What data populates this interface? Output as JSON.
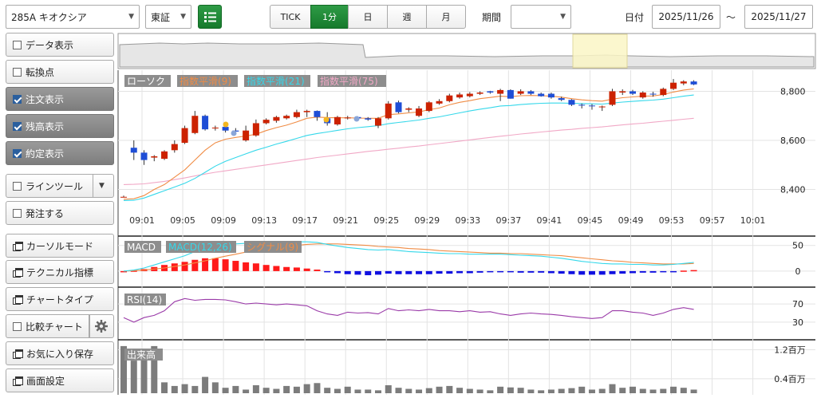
{
  "toolbar": {
    "symbol": "285A キオクシア",
    "market": "東証",
    "tabs": [
      "TICK",
      "1分",
      "日",
      "週",
      "月"
    ],
    "active_tab": "1分",
    "period_label": "期間",
    "period_value": "",
    "date_label": "日付",
    "date_from": "2025/11/26",
    "date_sep": "～",
    "date_to": "2025/11/27"
  },
  "sidebar": {
    "items": [
      {
        "label": "データ表示",
        "icon": "checkbox",
        "checked": false
      },
      {
        "label": "転換点",
        "icon": "checkbox",
        "checked": false
      },
      {
        "label": "注文表示",
        "icon": "checkbox",
        "checked": true
      },
      {
        "label": "残高表示",
        "icon": "checkbox",
        "checked": true
      },
      {
        "label": "約定表示",
        "icon": "checkbox",
        "checked": true
      },
      {
        "label": "ラインツール",
        "icon": "checkbox",
        "checked": false
      },
      {
        "label": "発注する",
        "icon": "checkbox",
        "checked": false
      },
      {
        "label": "カーソルモード",
        "icon": "window",
        "checked": false
      },
      {
        "label": "テクニカル指標",
        "icon": "window",
        "checked": false
      },
      {
        "label": "チャートタイプ",
        "icon": "window",
        "checked": false
      },
      {
        "label": "比較チャート",
        "icon": "checkbox",
        "checked": false
      },
      {
        "label": "お気に入り保存",
        "icon": "window",
        "checked": false
      },
      {
        "label": "画面設定",
        "icon": "window",
        "checked": false
      }
    ]
  },
  "chart_data": [
    {
      "type": "candlestick",
      "panel": "price",
      "legend": [
        "ローソク",
        "指数平滑(9)",
        "指数平滑(21)",
        "指数平滑(75)"
      ],
      "colors": {
        "up": "#cc2200",
        "down": "#1f4ed6",
        "ema9": "#f08c45",
        "ema21": "#35d8ea",
        "ema75": "#f1a8c6",
        "legend_bg": "#8d8d8d"
      },
      "x_tick_labels": [
        "09:01",
        "09:05",
        "09:09",
        "09:13",
        "09:17",
        "09:21",
        "09:25",
        "09:29",
        "09:33",
        "09:37",
        "09:41",
        "09:45",
        "09:49",
        "09:53",
        "09:57",
        "10:01"
      ],
      "y_ticks": [
        8400,
        8600,
        8800
      ],
      "ylim": [
        8340,
        8860
      ],
      "candles": [
        {
          "o": 8370,
          "h": 8375,
          "l": 8368,
          "c": 8370
        },
        {
          "o": 8570,
          "h": 8600,
          "l": 8520,
          "c": 8550
        },
        {
          "o": 8550,
          "h": 8560,
          "l": 8500,
          "c": 8520
        },
        {
          "o": 8530,
          "h": 8540,
          "l": 8515,
          "c": 8535
        },
        {
          "o": 8525,
          "h": 8560,
          "l": 8520,
          "c": 8555
        },
        {
          "o": 8560,
          "h": 8600,
          "l": 8550,
          "c": 8585
        },
        {
          "o": 8590,
          "h": 8660,
          "l": 8585,
          "c": 8650
        },
        {
          "o": 8630,
          "h": 8720,
          "l": 8625,
          "c": 8700
        },
        {
          "o": 8700,
          "h": 8705,
          "l": 8640,
          "c": 8645
        },
        {
          "o": 8650,
          "h": 8660,
          "l": 8640,
          "c": 8652
        },
        {
          "o": 8655,
          "h": 8658,
          "l": 8632,
          "c": 8640
        },
        {
          "o": 8640,
          "h": 8650,
          "l": 8628,
          "c": 8636
        },
        {
          "o": 8600,
          "h": 8660,
          "l": 8595,
          "c": 8640
        },
        {
          "o": 8620,
          "h": 8685,
          "l": 8615,
          "c": 8670
        },
        {
          "o": 8670,
          "h": 8690,
          "l": 8665,
          "c": 8684
        },
        {
          "o": 8680,
          "h": 8700,
          "l": 8672,
          "c": 8695
        },
        {
          "o": 8690,
          "h": 8705,
          "l": 8685,
          "c": 8700
        },
        {
          "o": 8695,
          "h": 8725,
          "l": 8690,
          "c": 8715
        },
        {
          "o": 8715,
          "h": 8725,
          "l": 8695,
          "c": 8720
        },
        {
          "o": 8720,
          "h": 8722,
          "l": 8680,
          "c": 8695
        },
        {
          "o": 8690,
          "h": 8715,
          "l": 8660,
          "c": 8670
        },
        {
          "o": 8665,
          "h": 8700,
          "l": 8660,
          "c": 8695
        },
        {
          "o": 8690,
          "h": 8700,
          "l": 8685,
          "c": 8693
        },
        {
          "o": 8695,
          "h": 8698,
          "l": 8685,
          "c": 8690
        },
        {
          "o": 8690,
          "h": 8695,
          "l": 8680,
          "c": 8685
        },
        {
          "o": 8660,
          "h": 8695,
          "l": 8650,
          "c": 8690
        },
        {
          "o": 8690,
          "h": 8760,
          "l": 8685,
          "c": 8750
        },
        {
          "o": 8755,
          "h": 8762,
          "l": 8710,
          "c": 8715
        },
        {
          "o": 8725,
          "h": 8735,
          "l": 8715,
          "c": 8730
        },
        {
          "o": 8700,
          "h": 8740,
          "l": 8695,
          "c": 8730
        },
        {
          "o": 8720,
          "h": 8760,
          "l": 8715,
          "c": 8755
        },
        {
          "o": 8750,
          "h": 8768,
          "l": 8745,
          "c": 8760
        },
        {
          "o": 8760,
          "h": 8790,
          "l": 8755,
          "c": 8783
        },
        {
          "o": 8775,
          "h": 8795,
          "l": 8770,
          "c": 8787
        },
        {
          "o": 8780,
          "h": 8797,
          "l": 8775,
          "c": 8790
        },
        {
          "o": 8790,
          "h": 8800,
          "l": 8785,
          "c": 8795
        },
        {
          "o": 8800,
          "h": 8802,
          "l": 8790,
          "c": 8795
        },
        {
          "o": 8790,
          "h": 8810,
          "l": 8760,
          "c": 8805
        },
        {
          "o": 8805,
          "h": 8808,
          "l": 8770,
          "c": 8770
        },
        {
          "o": 8790,
          "h": 8808,
          "l": 8785,
          "c": 8800
        },
        {
          "o": 8800,
          "h": 8805,
          "l": 8785,
          "c": 8790
        },
        {
          "o": 8790,
          "h": 8795,
          "l": 8778,
          "c": 8780
        },
        {
          "o": 8790,
          "h": 8795,
          "l": 8770,
          "c": 8775
        },
        {
          "o": 8772,
          "h": 8778,
          "l": 8760,
          "c": 8765
        },
        {
          "o": 8765,
          "h": 8768,
          "l": 8740,
          "c": 8745
        },
        {
          "o": 8745,
          "h": 8750,
          "l": 8730,
          "c": 8742
        },
        {
          "o": 8742,
          "h": 8748,
          "l": 8725,
          "c": 8740
        },
        {
          "o": 8738,
          "h": 8742,
          "l": 8720,
          "c": 8738
        },
        {
          "o": 8745,
          "h": 8810,
          "l": 8740,
          "c": 8800
        },
        {
          "o": 8795,
          "h": 8808,
          "l": 8785,
          "c": 8800
        },
        {
          "o": 8800,
          "h": 8806,
          "l": 8785,
          "c": 8790
        },
        {
          "o": 8775,
          "h": 8800,
          "l": 8770,
          "c": 8795
        },
        {
          "o": 8790,
          "h": 8798,
          "l": 8778,
          "c": 8788
        },
        {
          "o": 8785,
          "h": 8815,
          "l": 8780,
          "c": 8810
        },
        {
          "o": 8810,
          "h": 8850,
          "l": 8805,
          "c": 8835
        },
        {
          "o": 8832,
          "h": 8845,
          "l": 8825,
          "c": 8840
        },
        {
          "o": 8840,
          "h": 8845,
          "l": 8825,
          "c": 8828
        }
      ],
      "ema9": [
        8360,
        8362,
        8375,
        8400,
        8420,
        8450,
        8480,
        8520,
        8560,
        8590,
        8605,
        8612,
        8618,
        8625,
        8640,
        8652,
        8662,
        8675,
        8690,
        8695,
        8693,
        8692,
        8692,
        8691,
        8690,
        8690,
        8705,
        8708,
        8712,
        8716,
        8725,
        8732,
        8745,
        8755,
        8762,
        8770,
        8775,
        8780,
        8778,
        8782,
        8783,
        8782,
        8780,
        8776,
        8770,
        8765,
        8762,
        8760,
        8768,
        8774,
        8777,
        8780,
        8781,
        8787,
        8797,
        8805,
        8810
      ],
      "ema21": [
        8355,
        8356,
        8365,
        8380,
        8395,
        8410,
        8425,
        8445,
        8470,
        8495,
        8515,
        8530,
        8545,
        8560,
        8572,
        8585,
        8596,
        8608,
        8620,
        8628,
        8634,
        8641,
        8647,
        8652,
        8656,
        8660,
        8668,
        8673,
        8678,
        8683,
        8690,
        8696,
        8704,
        8712,
        8720,
        8727,
        8733,
        8740,
        8742,
        8746,
        8749,
        8751,
        8752,
        8752,
        8751,
        8750,
        8749,
        8748,
        8752,
        8756,
        8759,
        8762,
        8764,
        8768,
        8774,
        8780,
        8785
      ],
      "ema75": [
        8420,
        8421,
        8423,
        8428,
        8433,
        8440,
        8447,
        8455,
        8463,
        8470,
        8476,
        8482,
        8488,
        8494,
        8500,
        8506,
        8512,
        8518,
        8524,
        8530,
        8535,
        8540,
        8545,
        8550,
        8555,
        8559,
        8564,
        8568,
        8573,
        8577,
        8582,
        8587,
        8592,
        8597,
        8602,
        8607,
        8612,
        8617,
        8621,
        8626,
        8630,
        8634,
        8638,
        8642,
        8645,
        8649,
        8652,
        8655,
        8659,
        8663,
        8667,
        8670,
        8674,
        8678,
        8682,
        8686,
        8690
      ]
    },
    {
      "type": "line",
      "panel": "macd",
      "legend": [
        "MACD",
        "MACD(12,26)",
        "シグナル(9)"
      ],
      "y_ticks": [
        0,
        50
      ],
      "ylim": [
        -25,
        62
      ],
      "macd": [
        0,
        2,
        6,
        12,
        18,
        24,
        30,
        38,
        45,
        50,
        52,
        53,
        54,
        55,
        55,
        56,
        56,
        57,
        57,
        56,
        52,
        49,
        46,
        44,
        42,
        41,
        42,
        40,
        38,
        37,
        36,
        35,
        34,
        34,
        33,
        33,
        33,
        33,
        32,
        31,
        30,
        29,
        27,
        25,
        22,
        19,
        17,
        15,
        14,
        14,
        13,
        13,
        12,
        12,
        13,
        15,
        17
      ],
      "signal": [
        0,
        1,
        2,
        4,
        6,
        9,
        12,
        16,
        20,
        25,
        29,
        33,
        37,
        40,
        43,
        46,
        48,
        50,
        52,
        53,
        53,
        53,
        52,
        51,
        50,
        48,
        47,
        46,
        44,
        43,
        42,
        40,
        39,
        38,
        37,
        36,
        35,
        35,
        34,
        34,
        33,
        32,
        31,
        30,
        28,
        26,
        24,
        22,
        20,
        19,
        17,
        16,
        15,
        14,
        14,
        14,
        15
      ],
      "histogram": [
        0,
        1,
        4,
        8,
        12,
        15,
        18,
        22,
        25,
        25,
        23,
        20,
        17,
        15,
        12,
        10,
        8,
        7,
        5,
        3,
        -1,
        -4,
        -6,
        -7,
        -8,
        -7,
        -5,
        -6,
        -6,
        -6,
        -6,
        -5,
        -5,
        -4,
        -4,
        -3,
        -2,
        -2,
        -2,
        -3,
        -3,
        -3,
        -4,
        -5,
        -6,
        -7,
        -7,
        -7,
        -6,
        -5,
        -4,
        -3,
        -3,
        -2,
        -1,
        1,
        2
      ]
    },
    {
      "type": "line",
      "panel": "rsi",
      "legend": [
        "RSI(14)"
      ],
      "y_ticks": [
        30,
        70
      ],
      "ylim": [
        0,
        100
      ],
      "rsi": [
        40,
        30,
        40,
        45,
        55,
        75,
        82,
        78,
        80,
        80,
        79,
        75,
        70,
        72,
        70,
        68,
        70,
        68,
        66,
        55,
        48,
        45,
        52,
        50,
        51,
        48,
        60,
        55,
        57,
        55,
        58,
        55,
        55,
        53,
        55,
        52,
        53,
        48,
        45,
        48,
        50,
        48,
        47,
        45,
        42,
        40,
        38,
        40,
        55,
        55,
        52,
        50,
        45,
        50,
        58,
        62,
        58
      ]
    },
    {
      "type": "bar",
      "panel": "volume",
      "legend": [
        "出来高"
      ],
      "y_ticks": [
        "1.2百万",
        "0.4百万"
      ],
      "y_tick_values": [
        1.2,
        0.4
      ],
      "ylim": [
        0,
        1.43
      ],
      "values": [
        1.3,
        0.9,
        1.05,
        1.3,
        0.3,
        0.2,
        0.25,
        0.2,
        0.45,
        0.3,
        0.15,
        0.2,
        0.1,
        0.22,
        0.15,
        0.12,
        0.2,
        0.18,
        0.25,
        0.28,
        0.15,
        0.12,
        0.18,
        0.1,
        0.1,
        0.08,
        0.22,
        0.15,
        0.12,
        0.1,
        0.14,
        0.18,
        0.2,
        0.15,
        0.12,
        0.1,
        0.08,
        0.18,
        0.16,
        0.15,
        0.1,
        0.08,
        0.1,
        0.12,
        0.14,
        0.18,
        0.1,
        0.12,
        0.25,
        0.15,
        0.18,
        0.12,
        0.1,
        0.12,
        0.18,
        0.15,
        0.1
      ]
    }
  ]
}
